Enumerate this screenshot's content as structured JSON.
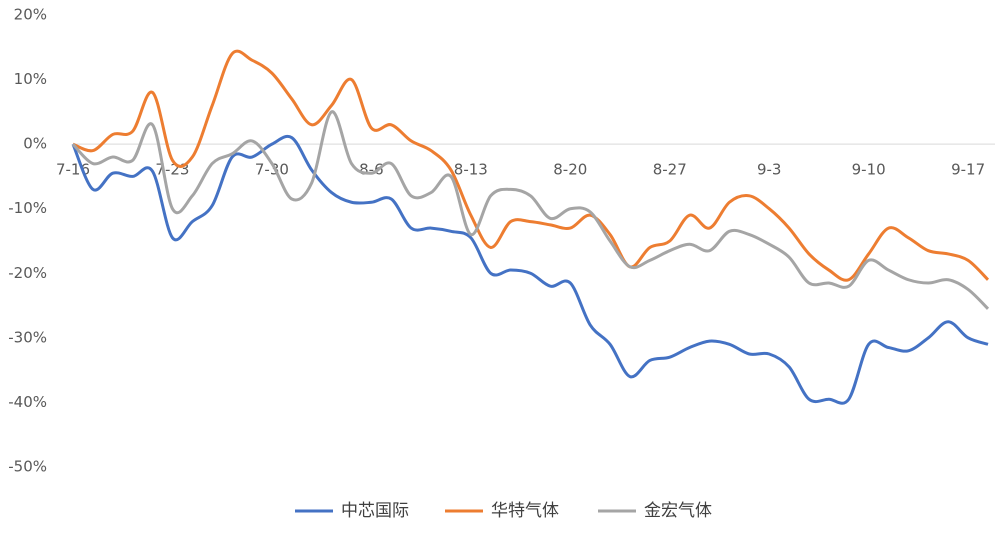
{
  "chart_data": {
    "type": "line",
    "categories": [
      "7-16",
      null,
      null,
      null,
      null,
      "7-23",
      null,
      null,
      null,
      null,
      "7-30",
      null,
      null,
      null,
      null,
      "8-6",
      null,
      null,
      null,
      null,
      "8-13",
      null,
      null,
      null,
      null,
      "8-20",
      null,
      null,
      null,
      null,
      "8-27",
      null,
      null,
      null,
      null,
      "9-3",
      null,
      null,
      null,
      null,
      "9-10",
      null,
      null,
      null,
      null,
      "9-17",
      null
    ],
    "series": [
      {
        "name": "中芯国际",
        "color": "#4472c4",
        "values": [
          0,
          -7,
          -4.5,
          -5,
          -4.2,
          -14.5,
          -12,
          -9.5,
          -2,
          -2,
          0,
          1,
          -4,
          -7.5,
          -9,
          -9,
          -8.5,
          -13,
          -13,
          -13.5,
          -14.5,
          -20,
          -19.5,
          -20,
          -22,
          -21.5,
          -28,
          -31,
          -36,
          -33.5,
          -33,
          -31.5,
          -30.5,
          -31,
          -32.5,
          -32.5,
          -34.5,
          -39.5,
          -39.5,
          -39.5,
          -31,
          -31.5,
          -32,
          -30,
          -27.5,
          -30,
          -31
        ]
      },
      {
        "name": "华特气体",
        "color": "#ed7d31",
        "values": [
          0,
          -1,
          1.5,
          2,
          8,
          -2.5,
          -2,
          6,
          14,
          13,
          11,
          7,
          3,
          6,
          10,
          2.5,
          3,
          0.5,
          -1,
          -4,
          -11,
          -16,
          -12,
          -12,
          -12.5,
          -13,
          -11,
          -14,
          -19,
          -16,
          -15,
          -11,
          -13,
          -9,
          -8,
          -10,
          -13,
          -17,
          -19.5,
          -21,
          -17,
          -13,
          -14.5,
          -16.5,
          -17,
          -18,
          -21
        ]
      },
      {
        "name": "金宏气体",
        "color": "#a5a5a5",
        "values": [
          0,
          -3,
          -2,
          -2.5,
          3,
          -10,
          -8,
          -3,
          -1.5,
          0.5,
          -3,
          -8.5,
          -6,
          5,
          -3,
          -4.5,
          -3,
          -8,
          -7.5,
          -5,
          -14,
          -8,
          -7,
          -8,
          -11.5,
          -10,
          -10.5,
          -15,
          -19,
          -18,
          -16.5,
          -15.5,
          -16.5,
          -13.5,
          -14,
          -15.5,
          -17.5,
          -21.5,
          -21.5,
          -22,
          -18,
          -19.5,
          -21,
          -21.5,
          -21,
          -22.5,
          -25.5
        ]
      }
    ],
    "ylim": [
      -50,
      20
    ],
    "yticks": [
      {
        "value": 20,
        "label": "20%"
      },
      {
        "value": 10,
        "label": "10%"
      },
      {
        "value": 0,
        "label": "0%"
      },
      {
        "value": -10,
        "label": "-10%"
      },
      {
        "value": -20,
        "label": "-20%"
      },
      {
        "value": -30,
        "label": "-30%"
      },
      {
        "value": -40,
        "label": "-40%"
      },
      {
        "value": -50,
        "label": "-50%"
      }
    ],
    "legend": "bottom"
  }
}
